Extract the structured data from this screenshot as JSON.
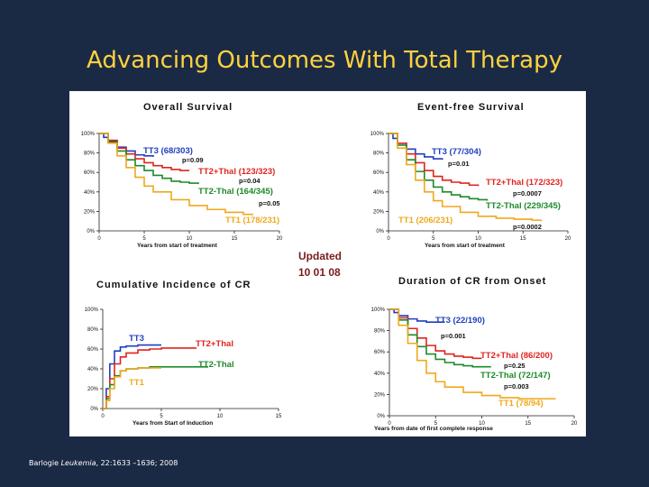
{
  "slide": {
    "title": "Advancing Outcomes With Total Therapy",
    "citation_author": "Barlogie",
    "citation_journal": "Leukemia",
    "citation_rest": ", 22:1633 –1636; 2008"
  },
  "updated": {
    "line1": "Updated",
    "line2": "10 01 08"
  },
  "colors": {
    "TT3": "#1f3fbf",
    "TT2+Thal": "#e0241f",
    "TT2-Thal": "#1d8a2a",
    "TT1": "#f0a81c"
  },
  "chart_data": [
    {
      "type": "line",
      "title": "Overall Survival",
      "xlabel": "Years from start of treatment",
      "ylabel": "",
      "xlim": [
        0,
        20
      ],
      "ylim": [
        0,
        100
      ],
      "x_ticks": [
        "0",
        "5",
        "10",
        "15",
        "20"
      ],
      "y_ticks": [
        "0%",
        "20%",
        "40%",
        "60%",
        "80%",
        "100%"
      ],
      "series": [
        {
          "name": "TT3",
          "label": "TT3 (68/303)",
          "x": [
            0,
            0.5,
            1,
            2,
            3,
            4,
            5,
            6
          ],
          "y": [
            100,
            96,
            92,
            86,
            82,
            78,
            77,
            76
          ]
        },
        {
          "name": "TT2+Thal",
          "label": "TT2+Thal (123/323)",
          "x": [
            0,
            1,
            2,
            3,
            4,
            5,
            6,
            7,
            8,
            9,
            10
          ],
          "y": [
            100,
            93,
            85,
            79,
            74,
            70,
            67,
            65,
            63,
            62,
            62
          ]
        },
        {
          "name": "TT2-Thal",
          "label": "TT2-Thal (164/345)",
          "x": [
            0,
            1,
            2,
            3,
            4,
            5,
            6,
            7,
            8,
            9,
            10,
            11
          ],
          "y": [
            100,
            91,
            82,
            73,
            67,
            62,
            57,
            54,
            51,
            50,
            49,
            48
          ]
        },
        {
          "name": "TT1",
          "label": "TT1 (178/231)",
          "x": [
            0,
            1,
            2,
            3,
            4,
            5,
            6,
            8,
            10,
            12,
            14,
            16,
            17
          ],
          "y": [
            100,
            90,
            77,
            65,
            55,
            46,
            40,
            32,
            26,
            22,
            19,
            17,
            16
          ]
        }
      ],
      "annotations": [
        "p=0.09",
        "p=0.04",
        "p=0.05"
      ]
    },
    {
      "type": "line",
      "title": "Event-free Survival",
      "xlabel": "Years from start of treatment",
      "ylabel": "",
      "xlim": [
        0,
        20
      ],
      "ylim": [
        0,
        100
      ],
      "x_ticks": [
        "0",
        "5",
        "10",
        "15",
        "20"
      ],
      "y_ticks": [
        "0%",
        "20%",
        "40%",
        "60%",
        "80%",
        "100%"
      ],
      "series": [
        {
          "name": "TT3",
          "label": "TT3 (77/304)",
          "x": [
            0,
            0.5,
            1,
            2,
            3,
            4,
            5,
            6
          ],
          "y": [
            100,
            95,
            90,
            84,
            79,
            76,
            74,
            73
          ]
        },
        {
          "name": "TT2+Thal",
          "label": "TT2+Thal (172/323)",
          "x": [
            0,
            1,
            2,
            3,
            4,
            5,
            6,
            7,
            8,
            9,
            10
          ],
          "y": [
            100,
            90,
            79,
            70,
            62,
            56,
            52,
            50,
            49,
            47,
            46
          ]
        },
        {
          "name": "TT2-Thal",
          "label": "TT2-Thal (229/345)",
          "x": [
            0,
            1,
            2,
            3,
            4,
            5,
            6,
            7,
            8,
            9,
            10,
            11
          ],
          "y": [
            100,
            88,
            73,
            61,
            52,
            45,
            40,
            37,
            35,
            33,
            32,
            31
          ]
        },
        {
          "name": "TT1",
          "label": "TT1 (206/231)",
          "x": [
            0,
            1,
            2,
            3,
            4,
            5,
            6,
            8,
            10,
            12,
            14,
            16,
            17
          ],
          "y": [
            100,
            85,
            68,
            52,
            40,
            31,
            25,
            19,
            15,
            13,
            12,
            11,
            10
          ]
        }
      ],
      "annotations": [
        "p=0.01",
        "p=0.0007",
        "p=0.0002"
      ]
    },
    {
      "type": "line",
      "title": "Cumulative Incidence of CR",
      "xlabel": "Years from Start of Induction",
      "ylabel": "",
      "xlim": [
        0,
        15
      ],
      "ylim": [
        0,
        100
      ],
      "x_ticks": [
        "0",
        "5",
        "10",
        "15"
      ],
      "y_ticks": [
        "0%",
        "20%",
        "40%",
        "60%",
        "80%",
        "100%"
      ],
      "series": [
        {
          "name": "TT3",
          "label": "TT3",
          "x": [
            0,
            0.3,
            0.6,
            1,
            1.5,
            2,
            3,
            4,
            5
          ],
          "y": [
            0,
            20,
            45,
            58,
            62,
            63,
            64,
            64,
            64
          ]
        },
        {
          "name": "TT2+Thal",
          "label": "TT2+Thal",
          "x": [
            0,
            0.3,
            0.6,
            1,
            1.5,
            2,
            3,
            4,
            5,
            6,
            7,
            8
          ],
          "y": [
            0,
            12,
            30,
            45,
            52,
            56,
            59,
            60,
            61,
            61,
            61,
            61
          ]
        },
        {
          "name": "TT2-Thal",
          "label": "TT2-Thal",
          "x": [
            0,
            0.3,
            0.6,
            1,
            1.5,
            2,
            3,
            4,
            5,
            6,
            7,
            8,
            9
          ],
          "y": [
            0,
            10,
            24,
            33,
            38,
            40,
            41,
            42,
            42,
            42,
            42,
            42,
            42
          ]
        },
        {
          "name": "TT1",
          "label": "TT1",
          "x": [
            0,
            0.3,
            0.6,
            1,
            1.5,
            2,
            3,
            4,
            5
          ],
          "y": [
            0,
            8,
            20,
            32,
            38,
            40,
            41,
            41,
            41
          ]
        }
      ],
      "annotations": []
    },
    {
      "type": "line",
      "title": "Duration of CR from Onset",
      "xlabel": "Years from date of first complete response",
      "ylabel": "",
      "xlim": [
        0,
        20
      ],
      "ylim": [
        0,
        100
      ],
      "x_ticks": [
        "0",
        "5",
        "10",
        "15",
        "20"
      ],
      "y_ticks": [
        "0%",
        "20%",
        "40%",
        "60%",
        "80%",
        "100%"
      ],
      "series": [
        {
          "name": "TT3",
          "label": "TT3 (22/190)",
          "x": [
            0,
            0.5,
            1,
            2,
            3,
            4,
            5,
            6
          ],
          "y": [
            100,
            97,
            94,
            91,
            89,
            88,
            88,
            88
          ]
        },
        {
          "name": "TT2+Thal",
          "label": "TT2+Thal (86/200)",
          "x": [
            0,
            1,
            2,
            3,
            4,
            5,
            6,
            7,
            8,
            9,
            10
          ],
          "y": [
            100,
            92,
            82,
            73,
            66,
            61,
            58,
            56,
            55,
            54,
            54
          ]
        },
        {
          "name": "TT2-Thal",
          "label": "TT2-Thal (72/147)",
          "x": [
            0,
            1,
            2,
            3,
            4,
            5,
            6,
            7,
            8,
            9,
            10,
            11
          ],
          "y": [
            100,
            90,
            76,
            65,
            58,
            53,
            50,
            48,
            47,
            46,
            46,
            46
          ]
        },
        {
          "name": "TT1",
          "label": "TT1 (78/94)",
          "x": [
            0,
            1,
            2,
            3,
            4,
            5,
            6,
            8,
            10,
            12,
            14,
            16,
            18
          ],
          "y": [
            100,
            85,
            68,
            52,
            40,
            32,
            27,
            22,
            19,
            17,
            16,
            16,
            16
          ]
        }
      ],
      "annotations": [
        "p=0.001",
        "p=0.25",
        "p=0.003"
      ]
    }
  ]
}
